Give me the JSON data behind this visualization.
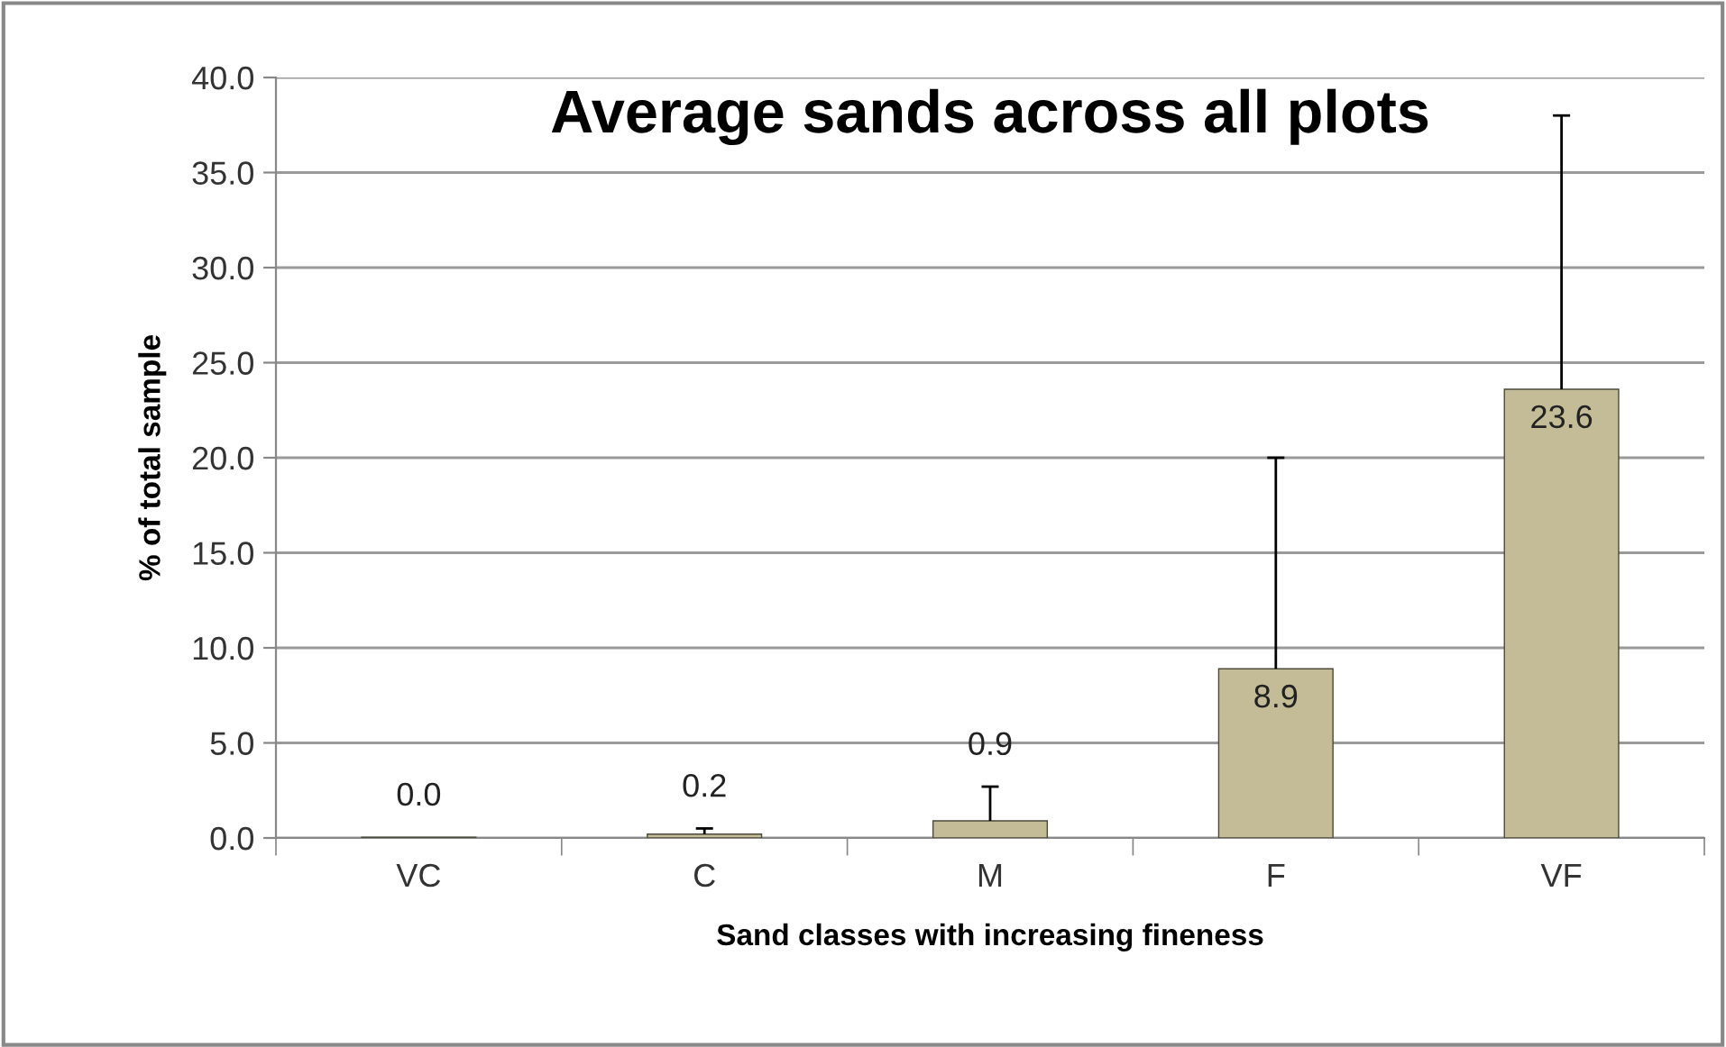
{
  "chart_data": {
    "type": "bar",
    "title": "Average sands across all plots",
    "xlabel": "Sand classes with increasing fineness",
    "ylabel": "% of total sample",
    "categories": [
      "VC",
      "C",
      "M",
      "F",
      "VF"
    ],
    "values": [
      0.04,
      0.2,
      0.9,
      8.9,
      23.6
    ],
    "value_labels": [
      "0.0",
      "0.2",
      "0.9",
      "8.9",
      "23.6"
    ],
    "errors": [
      null,
      [
        0.2,
        0.5
      ],
      [
        0.9,
        2.7
      ],
      [
        8.9,
        20.0
      ],
      [
        23.6,
        38.0
      ]
    ],
    "color": "#c4bc96",
    "ylim": [
      0,
      40
    ],
    "yticks": [
      {
        "value": 0,
        "label": "0.0"
      },
      {
        "value": 5,
        "label": "5.0"
      },
      {
        "value": 10,
        "label": "10.0"
      },
      {
        "value": 15,
        "label": "15.0"
      },
      {
        "value": 20,
        "label": "20.0"
      },
      {
        "value": 25,
        "label": "25.0"
      },
      {
        "value": 30,
        "label": "30.0"
      },
      {
        "value": 35,
        "label": "35.0"
      },
      {
        "value": 40,
        "label": "40.0"
      }
    ],
    "grid": "y"
  }
}
